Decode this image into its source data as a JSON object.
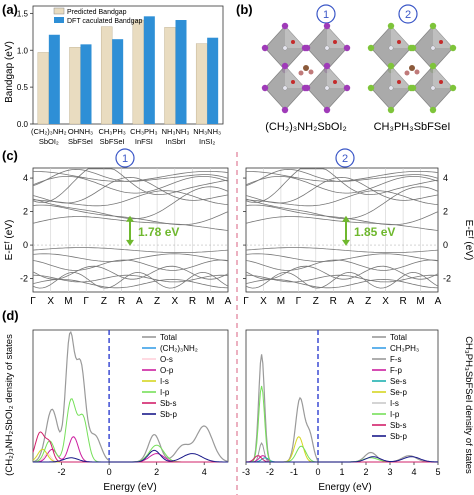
{
  "panels": {
    "a": {
      "label": "(a)"
    },
    "b": {
      "label": "(b)"
    },
    "c": {
      "label": "(c)"
    },
    "d": {
      "label": "(d)"
    }
  },
  "colors": {
    "predicted": "#e9dcc0",
    "dft": "#2e8fd6",
    "circle": "#3b57c7",
    "arrow": "#6fb82e",
    "divider": "#d96080",
    "dashed": "#2f3fd0",
    "band": "#777777"
  },
  "chart_data": [
    {
      "type": "bar",
      "panel": "a",
      "ylabel": "Bandgap (eV)",
      "ylim": [
        0,
        1.6
      ],
      "yticks": [
        "0.0",
        "0.5",
        "1.0",
        "1.5"
      ],
      "categories": [
        {
          "top": "(CH₂)₃NH₂",
          "bottom": "SbOI₂"
        },
        {
          "top": "OHNH₃",
          "bottom": "SbFSeI"
        },
        {
          "top": "CH₃PH₃",
          "bottom": "SbFSeI"
        },
        {
          "top": "CH₃PH₃",
          "bottom": "InFSI"
        },
        {
          "top": "NH₃NH₃",
          "bottom": "InSbrI"
        },
        {
          "top": "NH₃NH₃",
          "bottom": "InSI₂"
        }
      ],
      "series": [
        {
          "name": "Predicted Bandgap",
          "values": [
            0.97,
            1.04,
            1.32,
            1.41,
            1.31,
            1.09
          ]
        },
        {
          "name": "DFT caculated Bandgap",
          "values": [
            1.21,
            1.08,
            1.15,
            1.46,
            1.41,
            1.17
          ]
        }
      ],
      "legend": "top-left"
    },
    {
      "type": "line",
      "panel": "c1",
      "ylabel": "E-Eᶠ (eV)",
      "ylim": [
        -2.8,
        4.6
      ],
      "yticks": [
        "-2",
        "0",
        "2",
        "4"
      ],
      "kpath": [
        "Γ",
        "X",
        "M",
        "Γ",
        "Z",
        "R",
        "A",
        "Z",
        "X",
        "R",
        "M",
        "A"
      ],
      "gap_label": "1.78 eV",
      "circle": "1"
    },
    {
      "type": "line",
      "panel": "c2",
      "ylabel": "E-Eᶠ (eV)",
      "ylim": [
        -2.8,
        4.6
      ],
      "yticks": [
        "-2",
        "0",
        "2",
        "4"
      ],
      "kpath": [
        "Γ",
        "X",
        "M",
        "Γ",
        "Z",
        "R",
        "A",
        "Z",
        "X",
        "R",
        "M",
        "A"
      ],
      "gap_label": "1.85 eV",
      "circle": "2"
    },
    {
      "type": "line",
      "panel": "d1",
      "xlabel": "Energy (eV)",
      "ylabel": "(CH₂)₃NH₂SbOI₂ density of states",
      "xlim": [
        -3.2,
        5
      ],
      "xticks": [
        "-2",
        "0",
        "2",
        "4"
      ],
      "series": [
        {
          "name": "Total",
          "color": "#9a9a9a"
        },
        {
          "name": "(CH₂)₃NH₂",
          "color": "#3aa0e8"
        },
        {
          "name": "O-s",
          "color": "#ffd0da"
        },
        {
          "name": "O-p",
          "color": "#cc1fa0"
        },
        {
          "name": "I-s",
          "color": "#d6d623"
        },
        {
          "name": "I-p",
          "color": "#76e05a"
        },
        {
          "name": "Sb-s",
          "color": "#d2206a"
        },
        {
          "name": "Sb-p",
          "color": "#1a1a8a"
        }
      ]
    },
    {
      "type": "line",
      "panel": "d2",
      "xlabel": "Energy (eV)",
      "ylabel": "CH₃PH₃SbFSeI density of states",
      "xlim": [
        -3,
        5
      ],
      "xticks": [
        "-3",
        "-2",
        "-1",
        "0",
        "1",
        "2",
        "3",
        "4",
        "5"
      ],
      "series": [
        {
          "name": "Total",
          "color": "#9a9a9a"
        },
        {
          "name": "CH₃PH₃",
          "color": "#3aa0e8"
        },
        {
          "name": "F-s",
          "color": "#9a9a9a"
        },
        {
          "name": "F-p",
          "color": "#cc1fa0"
        },
        {
          "name": "Se-s",
          "color": "#1fb0b0"
        },
        {
          "name": "Se-p",
          "color": "#d6d623"
        },
        {
          "name": "I-s",
          "color": "#c9c9c9"
        },
        {
          "name": "I-p",
          "color": "#76e05a"
        },
        {
          "name": "Sb-s",
          "color": "#d2206a"
        },
        {
          "name": "Sb-p",
          "color": "#1a1a8a"
        }
      ]
    }
  ],
  "structures": [
    {
      "circle": "1",
      "caption": "(CH₂)₃NH₂SbOI₂",
      "anion": "#9f3bb8"
    },
    {
      "circle": "2",
      "caption": "CH₃PH₃SbFSeI",
      "anion": "#7ec43a"
    }
  ]
}
